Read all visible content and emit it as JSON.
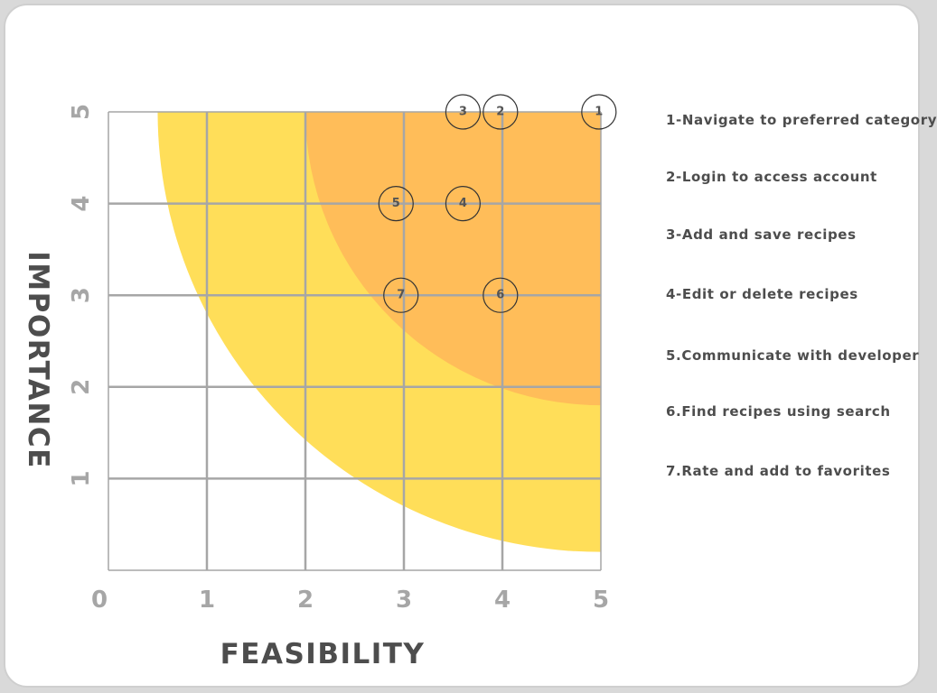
{
  "chart_data": {
    "type": "scatter",
    "xlabel": "FEASIBILITY",
    "ylabel": "IMPORTANCE",
    "xlim": [
      0,
      5
    ],
    "ylim": [
      0,
      5
    ],
    "x_ticks": [
      "0",
      "1",
      "2",
      "3",
      "4",
      "5"
    ],
    "y_ticks": [
      "1",
      "2",
      "3",
      "4",
      "5"
    ],
    "grid": true,
    "points": [
      {
        "label": "1",
        "x": 4.98,
        "y": 5.0
      },
      {
        "label": "2",
        "x": 3.98,
        "y": 5.0
      },
      {
        "label": "3",
        "x": 3.6,
        "y": 5.0
      },
      {
        "label": "4",
        "x": 3.6,
        "y": 4.0
      },
      {
        "label": "5",
        "x": 2.92,
        "y": 4.0
      },
      {
        "label": "6",
        "x": 3.98,
        "y": 3.0
      },
      {
        "label": "7",
        "x": 2.97,
        "y": 3.0
      }
    ],
    "zones": [
      {
        "color": "#ffde59",
        "center": [
          5,
          5
        ],
        "radius_x": 4.5,
        "radius_y": 4.8
      },
      {
        "color": "#ffbd59",
        "center": [
          5,
          5
        ],
        "radius_x": 3.0,
        "radius_y": 3.2
      }
    ],
    "legend": [
      "1-Navigate to preferred category",
      "2-Login to access account",
      "3-Add and save recipes",
      "4-Edit or delete recipes",
      "5.Communicate with developer",
      "6.Find recipes using search",
      "7.Rate and add to favorites"
    ],
    "legend_position": "right"
  },
  "colors": {
    "grid": "#a6a6a6",
    "tick_label": "#a6a6a6",
    "axis_title": "#4d4d4d",
    "point_label": "#545454",
    "point_stroke": "#333333"
  }
}
